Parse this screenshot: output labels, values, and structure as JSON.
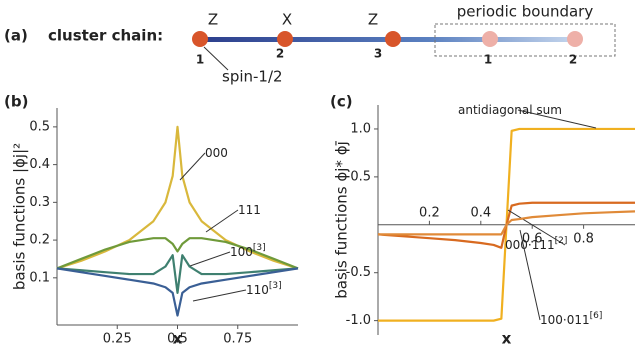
{
  "panel_a": {
    "label": "(a)",
    "title": "cluster chain:",
    "operators": [
      "Z",
      "X",
      "Z"
    ],
    "nodes": [
      "1",
      "2",
      "3",
      "1",
      "2"
    ],
    "boundary_label": "periodic boundary",
    "spin_label": "spin-1/2"
  },
  "chart_data": [
    {
      "type": "line",
      "panel_label": "(b)",
      "y_label": "basis functions |ϕj|²",
      "x_label": "x",
      "xlim": [
        0,
        1
      ],
      "ylim": [
        -0.025,
        0.55
      ],
      "xticks": [
        0.25,
        0.5,
        0.75
      ],
      "yticks": [
        0.1,
        0.2,
        0.3,
        0.4,
        0.5
      ],
      "x": [
        0,
        0.1,
        0.2,
        0.3,
        0.4,
        0.45,
        0.48,
        0.5,
        0.52,
        0.55,
        0.6,
        0.7,
        0.8,
        0.9,
        1.0
      ],
      "series": [
        {
          "name": "000",
          "color": "#d9b83c",
          "values": [
            0.125,
            0.145,
            0.17,
            0.2,
            0.25,
            0.3,
            0.37,
            0.5,
            0.37,
            0.3,
            0.25,
            0.2,
            0.17,
            0.145,
            0.125
          ]
        },
        {
          "name": "111",
          "color": "#6f9a3a",
          "values": [
            0.125,
            0.15,
            0.175,
            0.195,
            0.205,
            0.205,
            0.19,
            0.17,
            0.19,
            0.205,
            0.205,
            0.195,
            0.175,
            0.15,
            0.125
          ]
        },
        {
          "name": "100",
          "name_sup": "[3]",
          "color": "#3f8070",
          "values": [
            0.125,
            0.12,
            0.115,
            0.11,
            0.11,
            0.13,
            0.16,
            0.06,
            0.16,
            0.13,
            0.11,
            0.11,
            0.115,
            0.12,
            0.125
          ]
        },
        {
          "name": "110",
          "name_sup": "[3]",
          "color": "#3a5f95",
          "values": [
            0.125,
            0.115,
            0.105,
            0.095,
            0.085,
            0.075,
            0.06,
            0.0,
            0.06,
            0.075,
            0.085,
            0.095,
            0.105,
            0.115,
            0.125
          ]
        }
      ]
    },
    {
      "type": "line",
      "panel_label": "(c)",
      "y_label": "basis functions ϕj* ϕj̄",
      "x_label": "x",
      "xlim": [
        0,
        1
      ],
      "ylim": [
        -1.15,
        1.25
      ],
      "xticks": [
        0.2,
        0.4,
        0.6,
        0.8
      ],
      "yticks": [
        {
          "value": -1,
          "label": "-1.0"
        },
        -0.5,
        0.5,
        {
          "value": 1,
          "label": "1.0"
        }
      ],
      "x": [
        0,
        0.1,
        0.2,
        0.3,
        0.4,
        0.45,
        0.48,
        0.5,
        0.52,
        0.55,
        0.6,
        0.7,
        0.8,
        0.9,
        1.0
      ],
      "series": [
        {
          "name": "antidiagonal sum",
          "color": "#f0b020",
          "values": [
            -1,
            -1,
            -1,
            -1,
            -1,
            -1,
            -0.98,
            0,
            0.98,
            1,
            1,
            1,
            1,
            1,
            1
          ]
        },
        {
          "name": "000·111",
          "name_sup": "[2]",
          "color": "#d86a20",
          "values": [
            -0.1,
            -0.12,
            -0.14,
            -0.16,
            -0.19,
            -0.21,
            -0.24,
            0,
            0.2,
            0.22,
            0.23,
            0.23,
            0.23,
            0.23,
            0.23
          ]
        },
        {
          "name": "100·011",
          "name_sup": "[6]",
          "color": "#e08a38",
          "values": [
            -0.1,
            -0.1,
            -0.1,
            -0.1,
            -0.1,
            -0.1,
            -0.1,
            0,
            0.05,
            0.06,
            0.08,
            0.1,
            0.12,
            0.13,
            0.14
          ]
        }
      ]
    }
  ]
}
